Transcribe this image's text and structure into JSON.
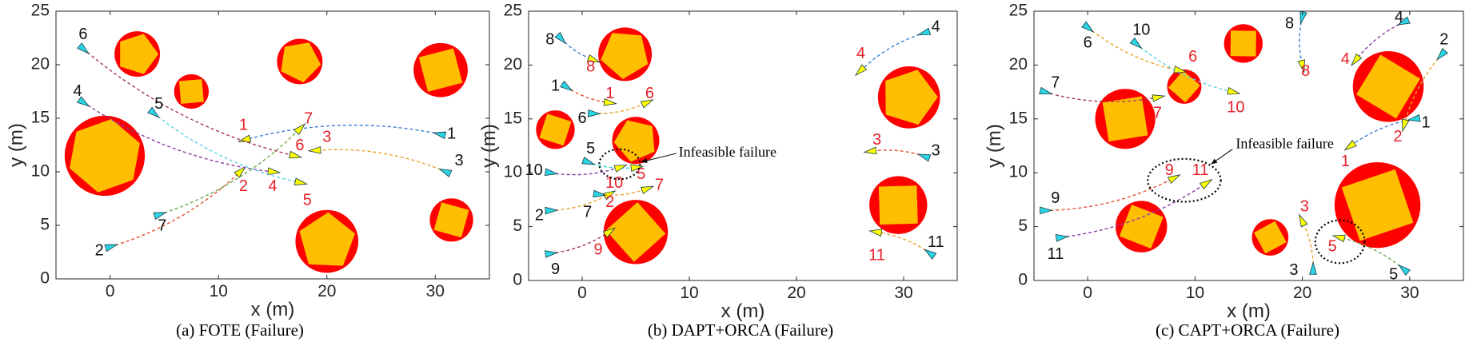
{
  "colors": {
    "obstacle_outer": "#ff0000",
    "obstacle_inner": "#ffbf00",
    "start_marker": "#2ad6e6",
    "goal_marker": "#ffff00",
    "goal_label": "#e8202a"
  },
  "chart_data": [
    {
      "type": "scatter",
      "caption": "(a) FOTE (Failure)",
      "xlabel": "x (m)",
      "ylabel": "y (m)",
      "xlim": [
        -5,
        35
      ],
      "ylim": [
        0,
        25
      ],
      "xticks": [
        0,
        10,
        20,
        30
      ],
      "yticks": [
        0,
        5,
        10,
        15,
        20,
        25
      ],
      "obstacles": [
        {
          "x": 2.5,
          "y": 21,
          "r": 2.1,
          "sides": 5
        },
        {
          "x": 7.5,
          "y": 17.5,
          "r": 1.6,
          "sides": 4
        },
        {
          "x": 17.5,
          "y": 20.3,
          "r": 2.1,
          "sides": 5
        },
        {
          "x": 30.5,
          "y": 19.5,
          "r": 2.5,
          "sides": 4
        },
        {
          "x": -0.5,
          "y": 11.5,
          "r": 3.7,
          "sides": 6
        },
        {
          "x": 20,
          "y": 3.5,
          "r": 2.9,
          "sides": 5
        },
        {
          "x": 31.5,
          "y": 5.5,
          "r": 2.0,
          "sides": 4
        }
      ],
      "agents": [
        {
          "id": "1",
          "start": [
            30.5,
            13.5
          ],
          "goal": [
            12.5,
            13
          ],
          "color": "#3b7fd4",
          "start_label": [
            31.5,
            13.5
          ],
          "goal_label": [
            12.3,
            14.3
          ]
        },
        {
          "id": "2",
          "start": [
            0,
            3
          ],
          "goal": [
            12,
            10
          ],
          "color": "#e0532c",
          "start_label": [
            -1,
            2.6
          ],
          "goal_label": [
            12.3,
            8.6
          ]
        },
        {
          "id": "3",
          "start": [
            31,
            10
          ],
          "goal": [
            19,
            12
          ],
          "color": "#e8a12a",
          "start_label": [
            32.2,
            11
          ],
          "goal_label": [
            20,
            13.2
          ]
        },
        {
          "id": "4",
          "start": [
            -2.5,
            16.5
          ],
          "goal": [
            15,
            10
          ],
          "color": "#8b3aa8",
          "start_label": [
            -3,
            17.5
          ],
          "goal_label": [
            15,
            8.6
          ]
        },
        {
          "id": "5",
          "start": [
            4,
            15.5
          ],
          "goal": [
            17.5,
            9
          ],
          "color": "#5fd0e6",
          "start_label": [
            4.5,
            16.3
          ],
          "goal_label": [
            18.2,
            7.3
          ]
        },
        {
          "id": "6",
          "start": [
            -2.5,
            21.5
          ],
          "goal": [
            17,
            11.5
          ],
          "color": "#a83a5a",
          "start_label": [
            -2.5,
            22.8
          ],
          "goal_label": [
            17.5,
            12.4
          ]
        },
        {
          "id": "7",
          "start": [
            4.5,
            6
          ],
          "goal": [
            17.5,
            14
          ],
          "color": "#6aa84f",
          "start_label": [
            4.8,
            4.9
          ],
          "goal_label": [
            18.3,
            14.9
          ]
        }
      ],
      "annotations": []
    },
    {
      "type": "scatter",
      "caption": "(b) DAPT+ORCA (Failure)",
      "xlabel": "x (m)",
      "ylabel": "y (m)",
      "xlim": [
        -5,
        35
      ],
      "ylim": [
        0,
        25
      ],
      "xticks": [
        0,
        10,
        20,
        30
      ],
      "yticks": [
        0,
        5,
        10,
        15,
        20,
        25
      ],
      "obstacles": [
        {
          "x": 4,
          "y": 21,
          "r": 2.5,
          "sides": 5
        },
        {
          "x": -2.5,
          "y": 14,
          "r": 1.8,
          "sides": 4
        },
        {
          "x": 5,
          "y": 13,
          "r": 2.2,
          "sides": 5
        },
        {
          "x": 30.5,
          "y": 17,
          "r": 2.9,
          "sides": 5
        },
        {
          "x": 5,
          "y": 4.5,
          "r": 3.0,
          "sides": 4
        },
        {
          "x": 29.5,
          "y": 7,
          "r": 2.7,
          "sides": 4
        }
      ],
      "agents": [
        {
          "id": "1",
          "start": [
            -1.5,
            18
          ],
          "goal": [
            2.5,
            16.5
          ],
          "color": "#e0532c",
          "start_label": [
            -2.5,
            18
          ],
          "goal_label": [
            2.6,
            17.3
          ]
        },
        {
          "id": "2",
          "start": [
            -3,
            6.5
          ],
          "goal": [
            2.5,
            8
          ],
          "color": "#e8a12a",
          "start_label": [
            -4,
            6
          ],
          "goal_label": [
            2.6,
            7.2
          ]
        },
        {
          "id": "3",
          "start": [
            32,
            11.5
          ],
          "goal": [
            27,
            12
          ],
          "color": "#e0532c",
          "start_label": [
            33,
            12
          ],
          "goal_label": [
            27.5,
            13
          ]
        },
        {
          "id": "4",
          "start": [
            32,
            23
          ],
          "goal": [
            26,
            19.5
          ],
          "color": "#3b7fd4",
          "start_label": [
            33,
            23.5
          ],
          "goal_label": [
            26,
            21
          ]
        },
        {
          "id": "5",
          "start": [
            0.5,
            11
          ],
          "goal": [
            5,
            10.5
          ],
          "color": "#2ad6e6",
          "start_label": [
            0.8,
            12.2
          ],
          "goal_label": [
            5.5,
            9.8
          ]
        },
        {
          "id": "6",
          "start": [
            1,
            15.5
          ],
          "goal": [
            6,
            16.5
          ],
          "color": "#e8a12a",
          "start_label": [
            0,
            15
          ],
          "goal_label": [
            6.3,
            17.3
          ]
        },
        {
          "id": "7",
          "start": [
            1.5,
            8
          ],
          "goal": [
            6,
            8.5
          ],
          "color": "#e8a12a",
          "start_label": [
            0.5,
            6.3
          ],
          "goal_label": [
            7.2,
            8.8
          ]
        },
        {
          "id": "8",
          "start": [
            -2,
            22.5
          ],
          "goal": [
            1,
            20.5
          ],
          "color": "#3b7fd4",
          "start_label": [
            -3,
            22.3
          ],
          "goal_label": [
            0.8,
            19.8
          ]
        },
        {
          "id": "9",
          "start": [
            -3,
            2.5
          ],
          "goal": [
            2.5,
            4.5
          ],
          "color": "#a83a5a",
          "start_label": [
            -2.5,
            1
          ],
          "goal_label": [
            1.5,
            2.8
          ]
        },
        {
          "id": "10",
          "start": [
            -3,
            10
          ],
          "goal": [
            3.5,
            10.5
          ],
          "color": "#8b3aa8",
          "start_label": [
            -4.5,
            10.2
          ],
          "goal_label": [
            3,
            9
          ]
        },
        {
          "id": "11",
          "start": [
            32.5,
            2.5
          ],
          "goal": [
            27.5,
            4.5
          ],
          "color": "#e8a12a",
          "start_label": [
            33,
            3.5
          ],
          "goal_label": [
            27.5,
            2.3
          ]
        }
      ],
      "annotations": [
        {
          "text": "Infeasible failure",
          "ellipse": {
            "x": 3.5,
            "y": 10.8,
            "rx": 1.9,
            "ry": 1.4
          },
          "text_pos": [
            9,
            11.8
          ],
          "arrow_from": [
            8.8,
            11.8
          ],
          "arrow_to": [
            5.5,
            11
          ]
        }
      ]
    },
    {
      "type": "scatter",
      "caption": "(c) CAPT+ORCA (Failure)",
      "xlabel": "x (m)",
      "ylabel": "y (m)",
      "xlim": [
        -5,
        35
      ],
      "ylim": [
        0,
        25
      ],
      "xticks": [
        0,
        10,
        20,
        30
      ],
      "yticks": [
        0,
        5,
        10,
        15,
        20,
        25
      ],
      "obstacles": [
        {
          "x": 14.5,
          "y": 22,
          "r": 1.8,
          "sides": 4
        },
        {
          "x": 9,
          "y": 18,
          "r": 1.6,
          "sides": 4
        },
        {
          "x": 3.5,
          "y": 15,
          "r": 2.8,
          "sides": 4
        },
        {
          "x": 28,
          "y": 18,
          "r": 3.3,
          "sides": 4
        },
        {
          "x": 27,
          "y": 7,
          "r": 4.0,
          "sides": 4
        },
        {
          "x": 5,
          "y": 5,
          "r": 2.4,
          "sides": 4
        },
        {
          "x": 17,
          "y": 4,
          "r": 1.7,
          "sides": 4
        }
      ],
      "agents": [
        {
          "id": "1",
          "start": [
            30.5,
            15
          ],
          "goal": [
            24.5,
            12.5
          ],
          "color": "#3b7fd4",
          "start_label": [
            31.5,
            14.6
          ],
          "goal_label": [
            24,
            11
          ]
        },
        {
          "id": "2",
          "start": [
            33,
            21
          ],
          "goal": [
            29.5,
            14.5
          ],
          "color": "#e8a12a",
          "start_label": [
            33.2,
            22.3
          ],
          "goal_label": [
            28.9,
            13.3
          ]
        },
        {
          "id": "3",
          "start": [
            21,
            1
          ],
          "goal": [
            20,
            5.5
          ],
          "color": "#e8a12a",
          "start_label": [
            19.2,
            0.9
          ],
          "goal_label": [
            20.2,
            6.8
          ]
        },
        {
          "id": "4",
          "start": [
            29.5,
            24
          ],
          "goal": [
            25,
            20.5
          ],
          "color": "#8b3aa8",
          "start_label": [
            29,
            24.4
          ],
          "goal_label": [
            24,
            20.5
          ]
        },
        {
          "id": "5",
          "start": [
            29.5,
            1
          ],
          "goal": [
            23.5,
            4
          ],
          "color": "#6aa84f",
          "start_label": [
            28.5,
            0.5
          ],
          "goal_label": [
            22.8,
            3.1
          ]
        },
        {
          "id": "6",
          "start": [
            0,
            23.5
          ],
          "goal": [
            8.5,
            19.5
          ],
          "color": "#e8a12a",
          "start_label": [
            0,
            22
          ],
          "goal_label": [
            9.8,
            20.7
          ]
        },
        {
          "id": "7",
          "start": [
            -4,
            17.5
          ],
          "goal": [
            6.5,
            17
          ],
          "color": "#a83a5a",
          "start_label": [
            -3,
            18.3
          ],
          "goal_label": [
            6.5,
            15.5
          ]
        },
        {
          "id": "8",
          "start": [
            20,
            24.5
          ],
          "goal": [
            20,
            20
          ],
          "color": "#3b7fd4",
          "start_label": [
            18.8,
            23.8
          ],
          "goal_label": [
            20.3,
            19.4
          ]
        },
        {
          "id": "9",
          "start": [
            -4,
            6.5
          ],
          "goal": [
            8,
            9.5
          ],
          "color": "#e0532c",
          "start_label": [
            -3,
            7.6
          ],
          "goal_label": [
            7.6,
            10.2
          ]
        },
        {
          "id": "10",
          "start": [
            4.5,
            22
          ],
          "goal": [
            13.5,
            17.5
          ],
          "color": "#5fd0e6",
          "start_label": [
            5,
            23.2
          ],
          "goal_label": [
            13.8,
            16
          ]
        },
        {
          "id": "11",
          "start": [
            -2.5,
            4
          ],
          "goal": [
            11,
            9
          ],
          "color": "#8b3aa8",
          "start_label": [
            -3,
            2.4
          ],
          "goal_label": [
            10.5,
            10.2
          ]
        }
      ],
      "annotations": [
        {
          "text": "Infeasible failure",
          "ellipse": {
            "x": 9,
            "y": 9.3,
            "rx": 3.4,
            "ry": 2.0
          },
          "text_pos": [
            13.8,
            12.6
          ],
          "arrow_from": [
            13.5,
            12.2
          ],
          "arrow_to": [
            11.5,
            10.8
          ]
        },
        {
          "text": "",
          "ellipse": {
            "x": 23.5,
            "y": 3.6,
            "rx": 2.3,
            "ry": 2.0
          },
          "text_pos": null,
          "arrow_from": null,
          "arrow_to": null
        }
      ]
    }
  ]
}
